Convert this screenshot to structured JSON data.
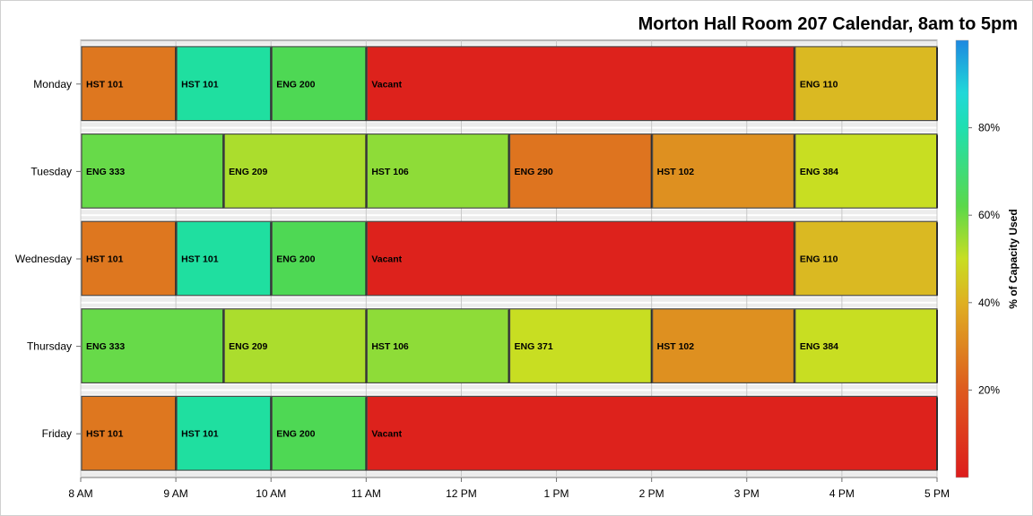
{
  "chart_data": {
    "type": "bar",
    "orientation": "horizontal",
    "title": "Morton Hall Room 207 Calendar, 8am to 5pm",
    "x_ticks": [
      "8 AM",
      "9 AM",
      "10 AM",
      "11 AM",
      "12 PM",
      "1 PM",
      "2 PM",
      "3 PM",
      "4 PM",
      "5 PM"
    ],
    "x_range_hours": [
      8,
      17
    ],
    "days": [
      "Monday",
      "Tuesday",
      "Wednesday",
      "Thursday",
      "Friday"
    ],
    "colorbar": {
      "title": "% of Capacity Used",
      "ticks": [
        "20%",
        "40%",
        "60%",
        "80%"
      ],
      "range": [
        0,
        100
      ]
    },
    "schedule": [
      {
        "day": "Monday",
        "blocks": [
          {
            "label": "HST 101",
            "start": 8,
            "end": 9,
            "capacity": 29
          },
          {
            "label": "HST 101",
            "start": 9,
            "end": 10,
            "capacity": 76
          },
          {
            "label": "ENG 200",
            "start": 10,
            "end": 11,
            "capacity": 66
          },
          {
            "label": "Vacant",
            "start": 11,
            "end": 15.5,
            "capacity": 2
          },
          {
            "label": "ENG 110",
            "start": 15.5,
            "end": 17,
            "capacity": 42
          }
        ]
      },
      {
        "day": "Tuesday",
        "blocks": [
          {
            "label": "ENG 333",
            "start": 8,
            "end": 9.5,
            "capacity": 63
          },
          {
            "label": "ENG 209",
            "start": 9.5,
            "end": 11,
            "capacity": 54
          },
          {
            "label": "HST 106",
            "start": 11,
            "end": 12.5,
            "capacity": 58
          },
          {
            "label": "ENG 290",
            "start": 12.5,
            "end": 14,
            "capacity": 28
          },
          {
            "label": "HST 102",
            "start": 14,
            "end": 15.5,
            "capacity": 34
          },
          {
            "label": "ENG 384",
            "start": 15.5,
            "end": 17,
            "capacity": 50
          }
        ]
      },
      {
        "day": "Wednesday",
        "blocks": [
          {
            "label": "HST 101",
            "start": 8,
            "end": 9,
            "capacity": 29
          },
          {
            "label": "HST 101",
            "start": 9,
            "end": 10,
            "capacity": 76
          },
          {
            "label": "ENG 200",
            "start": 10,
            "end": 11,
            "capacity": 66
          },
          {
            "label": "Vacant",
            "start": 11,
            "end": 15.5,
            "capacity": 2
          },
          {
            "label": "ENG 110",
            "start": 15.5,
            "end": 17,
            "capacity": 42
          }
        ]
      },
      {
        "day": "Thursday",
        "blocks": [
          {
            "label": "ENG 333",
            "start": 8,
            "end": 9.5,
            "capacity": 63
          },
          {
            "label": "ENG 209",
            "start": 9.5,
            "end": 11,
            "capacity": 54
          },
          {
            "label": "HST 106",
            "start": 11,
            "end": 12.5,
            "capacity": 58
          },
          {
            "label": "ENG 371",
            "start": 12.5,
            "end": 14,
            "capacity": 50
          },
          {
            "label": "HST 102",
            "start": 14,
            "end": 15.5,
            "capacity": 34
          },
          {
            "label": "ENG 384",
            "start": 15.5,
            "end": 17,
            "capacity": 50
          }
        ]
      },
      {
        "day": "Friday",
        "blocks": [
          {
            "label": "HST 101",
            "start": 8,
            "end": 9,
            "capacity": 29
          },
          {
            "label": "HST 101",
            "start": 9,
            "end": 10,
            "capacity": 76
          },
          {
            "label": "ENG 200",
            "start": 10,
            "end": 11,
            "capacity": 66
          },
          {
            "label": "Vacant",
            "start": 11,
            "end": 17,
            "capacity": 2
          }
        ]
      }
    ],
    "grid": true,
    "legend": "right",
    "colors": {
      "scale": [
        "#dd1c1c",
        "#de7a1f",
        "#dfc622",
        "#5bd84a",
        "#1fdfa8",
        "#1e90e0"
      ]
    }
  }
}
